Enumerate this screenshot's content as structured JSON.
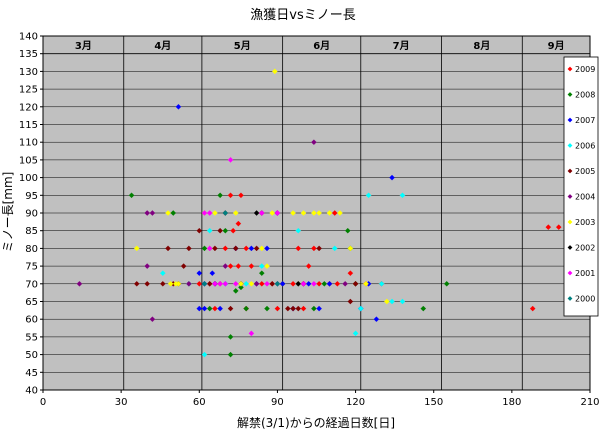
{
  "chart_data": {
    "type": "scatter",
    "title": "漁獲日vsミノー長",
    "xlabel": "解禁(3/1)からの経過日数[日]",
    "ylabel": "ミノー長[mm]",
    "xlim": [
      0,
      210
    ],
    "ylim": [
      40,
      140
    ],
    "xticks": [
      0,
      30,
      60,
      90,
      120,
      150,
      180,
      210
    ],
    "yticks": [
      40,
      45,
      50,
      55,
      60,
      65,
      70,
      75,
      80,
      85,
      90,
      95,
      100,
      105,
      110,
      115,
      120,
      125,
      130,
      135,
      140
    ],
    "grid": true,
    "plot_background": "#c0c0c0",
    "legend_position": "right",
    "month_bands": [
      {
        "label": "3月",
        "start": 0,
        "end": 31
      },
      {
        "label": "4月",
        "start": 31,
        "end": 61
      },
      {
        "label": "5月",
        "start": 61,
        "end": 92
      },
      {
        "label": "6月",
        "start": 92,
        "end": 122
      },
      {
        "label": "7月",
        "start": 122,
        "end": 153
      },
      {
        "label": "8月",
        "start": 153,
        "end": 184
      },
      {
        "label": "9月",
        "start": 184,
        "end": 210
      }
    ],
    "series": [
      {
        "name": "2009",
        "color": "#ff0000",
        "points": [
          [
            188,
            63
          ],
          [
            194,
            86
          ],
          [
            198,
            86
          ],
          [
            72,
            95
          ],
          [
            76,
            95
          ],
          [
            73,
            85
          ],
          [
            75,
            87
          ],
          [
            78,
            80
          ],
          [
            70,
            80
          ],
          [
            72,
            75
          ],
          [
            75,
            75
          ],
          [
            80,
            75
          ],
          [
            84,
            70
          ],
          [
            88,
            70
          ],
          [
            92,
            70
          ],
          [
            96,
            70
          ],
          [
            100,
            70
          ],
          [
            102,
            75
          ],
          [
            106,
            70
          ],
          [
            110,
            70
          ],
          [
            113,
            70
          ],
          [
            118,
            73
          ],
          [
            120,
            70
          ],
          [
            124,
            70
          ],
          [
            130,
            70
          ],
          [
            66,
            63
          ],
          [
            78,
            63
          ],
          [
            90,
            63
          ],
          [
            100,
            63
          ],
          [
            104,
            80
          ],
          [
            98,
            80
          ],
          [
            90,
            90
          ],
          [
            112,
            90
          ],
          [
            60,
            70
          ],
          [
            64,
            70
          ],
          [
            68,
            70
          ]
        ]
      },
      {
        "name": "2008",
        "color": "#008000",
        "points": [
          [
            34,
            95
          ],
          [
            50,
            90
          ],
          [
            56,
            70
          ],
          [
            68,
            95
          ],
          [
            72,
            55
          ],
          [
            72,
            50
          ],
          [
            74,
            68
          ],
          [
            76,
            69
          ],
          [
            78,
            63
          ],
          [
            84,
            73
          ],
          [
            86,
            63
          ],
          [
            92,
            70
          ],
          [
            104,
            63
          ],
          [
            108,
            70
          ],
          [
            117,
            85
          ],
          [
            118,
            80
          ],
          [
            120,
            70
          ],
          [
            146,
            63
          ],
          [
            155,
            70
          ],
          [
            64,
            63
          ],
          [
            62,
            80
          ],
          [
            70,
            85
          ]
        ]
      },
      {
        "name": "2007",
        "color": "#0000ff",
        "points": [
          [
            52,
            120
          ],
          [
            60,
            73
          ],
          [
            62,
            70
          ],
          [
            60,
            63
          ],
          [
            64,
            80
          ],
          [
            65,
            73
          ],
          [
            66,
            70
          ],
          [
            68,
            63
          ],
          [
            70,
            70
          ],
          [
            74,
            80
          ],
          [
            76,
            70
          ],
          [
            80,
            80
          ],
          [
            82,
            70
          ],
          [
            86,
            80
          ],
          [
            90,
            90
          ],
          [
            92,
            70
          ],
          [
            98,
            70
          ],
          [
            102,
            70
          ],
          [
            106,
            63
          ],
          [
            110,
            70
          ],
          [
            122,
            63
          ],
          [
            125,
            70
          ],
          [
            128,
            60
          ],
          [
            134,
            100
          ],
          [
            96,
            63
          ],
          [
            62,
            63
          ]
        ]
      },
      {
        "name": "2006",
        "color": "#00ffff",
        "points": [
          [
            46,
            73
          ],
          [
            56,
            70
          ],
          [
            62,
            50
          ],
          [
            70,
            70
          ],
          [
            78,
            70
          ],
          [
            84,
            75
          ],
          [
            90,
            70
          ],
          [
            120,
            56
          ],
          [
            122,
            63
          ],
          [
            125,
            95
          ],
          [
            130,
            70
          ],
          [
            134,
            65
          ],
          [
            138,
            65
          ],
          [
            138,
            95
          ],
          [
            64,
            85
          ],
          [
            112,
            80
          ],
          [
            98,
            85
          ]
        ]
      },
      {
        "name": "2005",
        "color": "#800000",
        "points": [
          [
            36,
            70
          ],
          [
            40,
            70
          ],
          [
            46,
            70
          ],
          [
            50,
            70
          ],
          [
            48,
            80
          ],
          [
            52,
            70
          ],
          [
            54,
            75
          ],
          [
            56,
            80
          ],
          [
            60,
            85
          ],
          [
            64,
            70
          ],
          [
            66,
            80
          ],
          [
            68,
            85
          ],
          [
            70,
            90
          ],
          [
            72,
            63
          ],
          [
            74,
            80
          ],
          [
            76,
            70
          ],
          [
            82,
            80
          ],
          [
            84,
            90
          ],
          [
            88,
            70
          ],
          [
            94,
            63
          ],
          [
            96,
            63
          ],
          [
            100,
            70
          ],
          [
            118,
            65
          ],
          [
            120,
            70
          ],
          [
            106,
            80
          ],
          [
            98,
            63
          ]
        ]
      },
      {
        "name": "2004",
        "color": "#800080",
        "points": [
          [
            14,
            70
          ],
          [
            40,
            75
          ],
          [
            40,
            90
          ],
          [
            42,
            90
          ],
          [
            42,
            60
          ],
          [
            56,
            70
          ],
          [
            70,
            75
          ],
          [
            82,
            70
          ],
          [
            90,
            70
          ],
          [
            104,
            110
          ],
          [
            116,
            70
          ]
        ]
      },
      {
        "name": "2003",
        "color": "#ffff00",
        "points": [
          [
            36,
            80
          ],
          [
            48,
            90
          ],
          [
            49,
            70
          ],
          [
            51,
            70
          ],
          [
            62,
            90
          ],
          [
            64,
            80
          ],
          [
            66,
            90
          ],
          [
            74,
            90
          ],
          [
            76,
            70
          ],
          [
            80,
            70
          ],
          [
            86,
            75
          ],
          [
            88,
            90
          ],
          [
            89,
            130
          ],
          [
            96,
            90
          ],
          [
            100,
            90
          ],
          [
            104,
            90
          ],
          [
            106,
            90
          ],
          [
            110,
            90
          ],
          [
            114,
            90
          ],
          [
            118,
            80
          ],
          [
            124,
            70
          ],
          [
            132,
            65
          ],
          [
            98,
            70
          ],
          [
            84,
            80
          ],
          [
            52,
            70
          ]
        ]
      },
      {
        "name": "2002",
        "color": "#000000",
        "points": [
          [
            82,
            90
          ],
          [
            98,
            70
          ],
          [
            66,
            70
          ]
        ]
      },
      {
        "name": "2001",
        "color": "#ff00ff",
        "points": [
          [
            62,
            90
          ],
          [
            64,
            90
          ],
          [
            66,
            70
          ],
          [
            70,
            70
          ],
          [
            72,
            105
          ],
          [
            80,
            56
          ],
          [
            84,
            90
          ],
          [
            86,
            70
          ],
          [
            90,
            90
          ],
          [
            100,
            70
          ],
          [
            104,
            70
          ],
          [
            64,
            80
          ],
          [
            68,
            70
          ],
          [
            74,
            70
          ]
        ]
      },
      {
        "name": "2000",
        "color": "#008080",
        "points": [
          [
            62,
            70
          ],
          [
            70,
            90
          ],
          [
            90,
            70
          ]
        ]
      }
    ]
  }
}
